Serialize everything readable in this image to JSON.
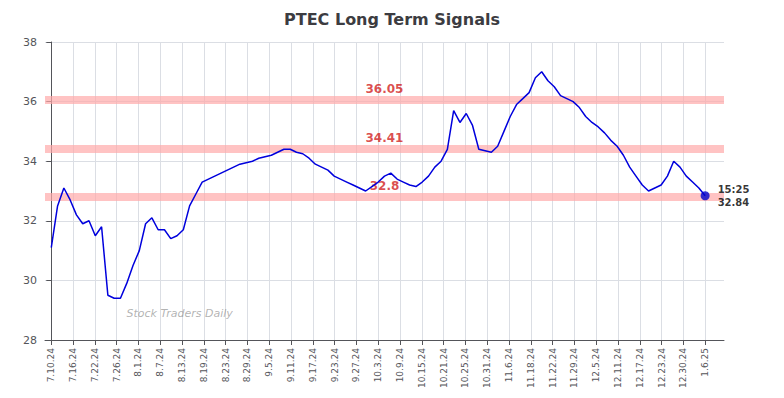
{
  "chart_data": {
    "type": "line",
    "title": "PTEC Long Term Signals",
    "watermark": "Stock Traders Daily",
    "color": "#0000dd",
    "grid": true,
    "x": [
      0,
      1,
      2,
      3,
      4,
      5,
      6,
      7,
      8,
      9,
      10,
      11,
      12,
      13,
      14,
      15,
      16,
      17,
      18,
      19,
      20,
      21,
      22,
      23,
      24,
      25,
      26,
      27,
      28,
      29,
      30,
      31,
      32,
      33,
      34,
      35,
      36,
      37,
      38,
      39,
      40,
      41,
      42,
      43,
      44,
      45,
      46,
      47,
      48,
      49,
      50,
      51,
      52,
      53,
      54,
      55,
      56,
      57,
      58,
      59,
      60,
      61,
      62,
      63,
      64,
      65,
      66,
      67,
      68,
      69,
      70,
      71,
      72,
      73,
      74,
      75,
      76,
      77,
      78,
      79,
      80,
      81,
      82,
      83,
      84,
      85,
      86,
      87,
      88,
      89,
      90,
      91,
      92,
      93,
      94,
      95,
      96,
      97,
      98,
      99,
      100,
      101,
      102,
      103,
      104
    ],
    "values": [
      31.1,
      32.5,
      33.1,
      32.7,
      32.2,
      31.9,
      32.0,
      31.5,
      31.8,
      29.5,
      29.4,
      29.4,
      29.9,
      30.5,
      31.0,
      31.9,
      32.1,
      31.7,
      31.7,
      31.4,
      31.5,
      31.7,
      32.5,
      32.9,
      33.3,
      33.4,
      33.5,
      33.6,
      33.7,
      33.8,
      33.9,
      33.95,
      34.0,
      34.1,
      34.15,
      34.2,
      34.3,
      34.4,
      34.4,
      34.3,
      34.25,
      34.1,
      33.9,
      33.8,
      33.7,
      33.5,
      33.4,
      33.3,
      33.2,
      33.1,
      33.0,
      33.15,
      33.3,
      33.5,
      33.6,
      33.4,
      33.3,
      33.2,
      33.15,
      33.3,
      33.5,
      33.8,
      34.0,
      34.4,
      35.7,
      35.3,
      35.6,
      35.2,
      34.4,
      34.35,
      34.3,
      34.5,
      35.0,
      35.5,
      35.9,
      36.1,
      36.3,
      36.8,
      37.0,
      36.7,
      36.5,
      36.2,
      36.1,
      36.0,
      35.8,
      35.5,
      35.3,
      35.15,
      34.95,
      34.7,
      34.5,
      34.2,
      33.8,
      33.5,
      33.2,
      33.0,
      33.1,
      33.2,
      33.5,
      34.0,
      33.8,
      33.5,
      33.3,
      33.1,
      32.84
    ],
    "xlim": [
      -1,
      107
    ],
    "xticks": [
      {
        "value": 0,
        "label": "7.10.24"
      },
      {
        "value": 3.466667,
        "label": "7.16.24"
      },
      {
        "value": 6.933333,
        "label": "7.22.24"
      },
      {
        "value": 10.4,
        "label": "7.26.24"
      },
      {
        "value": 13.866667,
        "label": "8.1.24"
      },
      {
        "value": 17.333333,
        "label": "8.7.24"
      },
      {
        "value": 20.8,
        "label": "8.13.24"
      },
      {
        "value": 24.266667,
        "label": "8.19.24"
      },
      {
        "value": 27.733333,
        "label": "8.23.24"
      },
      {
        "value": 31.2,
        "label": "8.29.24"
      },
      {
        "value": 34.666667,
        "label": "9.5.24"
      },
      {
        "value": 38.133333,
        "label": "9.11.24"
      },
      {
        "value": 41.6,
        "label": "9.17.24"
      },
      {
        "value": 45.066667,
        "label": "9.23.24"
      },
      {
        "value": 48.533333,
        "label": "9.27.24"
      },
      {
        "value": 52,
        "label": "10.3.24"
      },
      {
        "value": 55.466667,
        "label": "10.9.24"
      },
      {
        "value": 58.933333,
        "label": "10.15.24"
      },
      {
        "value": 62.4,
        "label": "10.21.24"
      },
      {
        "value": 65.866667,
        "label": "10.25.24"
      },
      {
        "value": 69.333333,
        "label": "10.31.24"
      },
      {
        "value": 72.8,
        "label": "11.6.24"
      },
      {
        "value": 76.266667,
        "label": "11.18.24"
      },
      {
        "value": 79.733333,
        "label": "11.22.24"
      },
      {
        "value": 83.2,
        "label": "11.29.24"
      },
      {
        "value": 86.666667,
        "label": "12.5.24"
      },
      {
        "value": 90.133333,
        "label": "12.11.24"
      },
      {
        "value": 93.6,
        "label": "12.17.24"
      },
      {
        "value": 97.066667,
        "label": "12.23.24"
      },
      {
        "value": 100.533333,
        "label": "12.30.24"
      },
      {
        "value": 104,
        "label": "1.6.25"
      }
    ],
    "ylim": [
      28,
      38
    ],
    "yticks": [
      28,
      30,
      32,
      34,
      36,
      38
    ],
    "hlines": [
      {
        "value": 36.05,
        "label": "36.05"
      },
      {
        "value": 34.41,
        "label": "34.41"
      },
      {
        "value": 32.8,
        "label": "32.8"
      }
    ],
    "hline_color": "#ffaaaa",
    "hline_label_color": "#cc0000",
    "last_point": {
      "label": "15:25",
      "value": 32.84,
      "color": "#0000cc"
    }
  }
}
